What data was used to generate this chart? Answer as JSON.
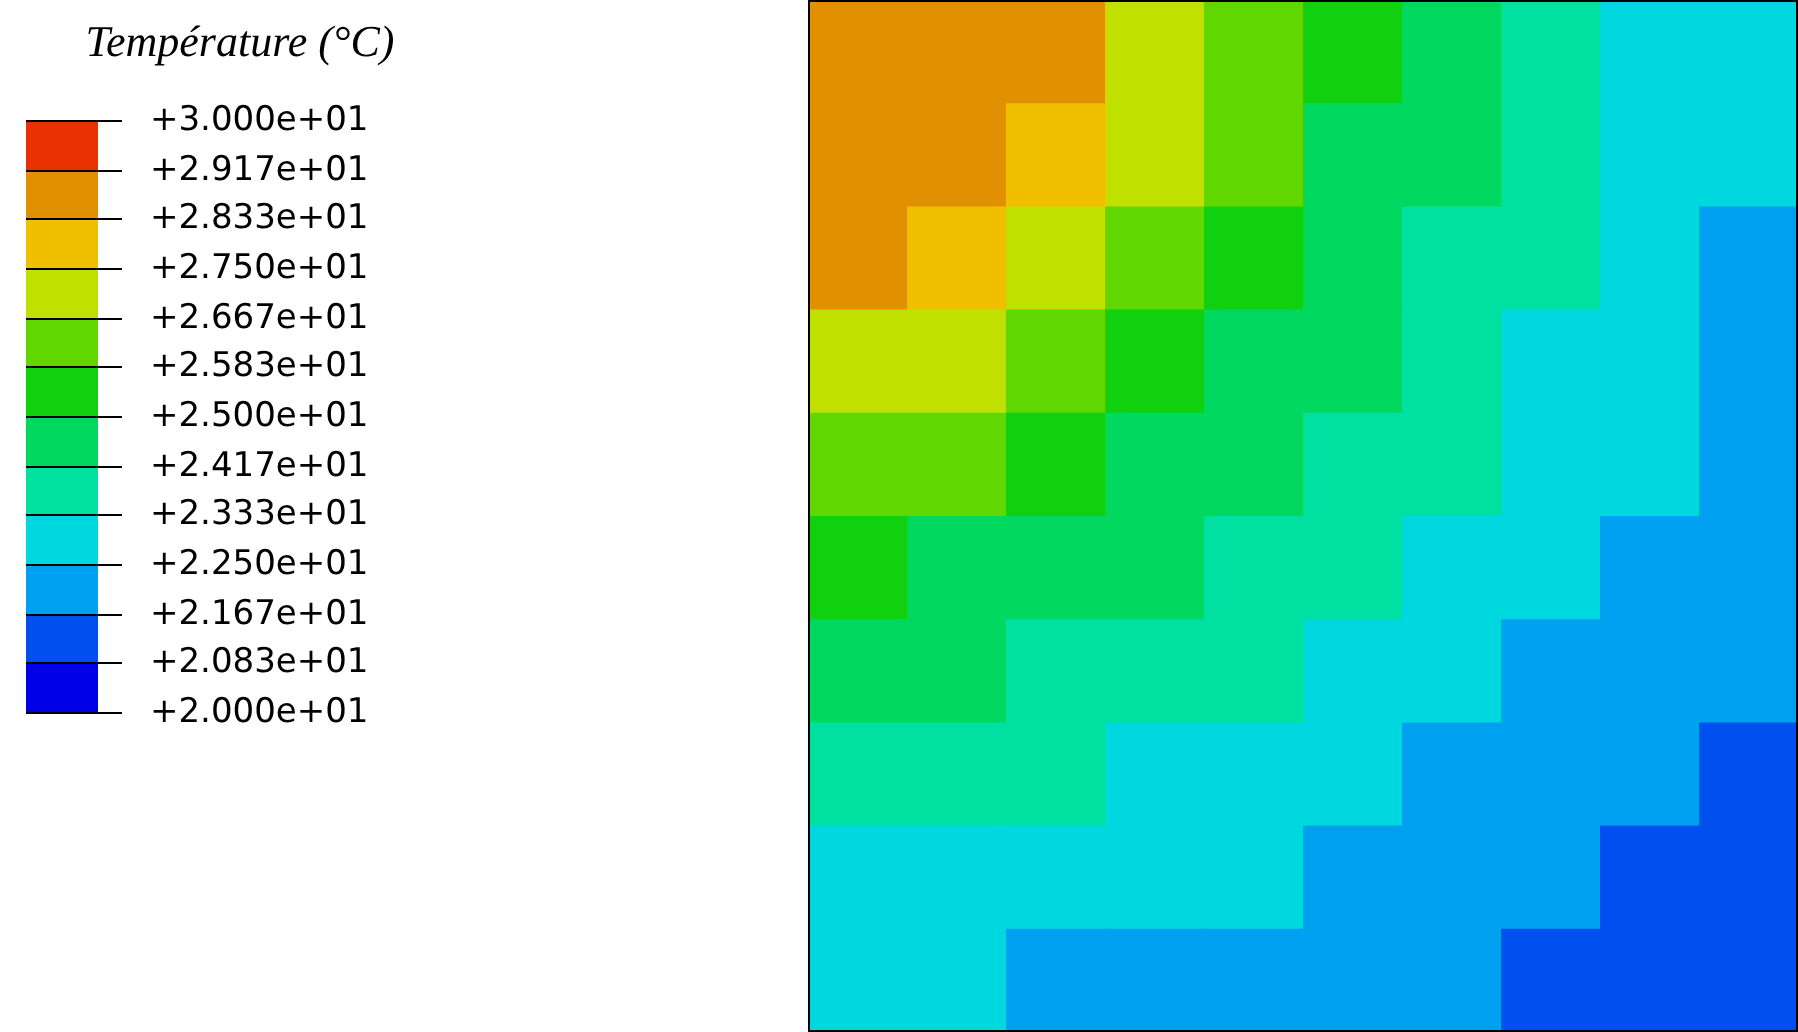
{
  "chart_data": {
    "type": "heatmap",
    "clabel": "Température (°C)",
    "categories": [
      null,
      null,
      null,
      null,
      null,
      null,
      null,
      null,
      null,
      null
    ],
    "y_categories": [
      null,
      null,
      null,
      null,
      null,
      null,
      null,
      null,
      null,
      null
    ],
    "cells": [
      [
        29.0,
        28.9,
        28.7,
        27.2,
        26.1,
        25.2,
        24.4,
        23.7,
        23.1,
        22.6
      ],
      [
        28.9,
        28.8,
        28.1,
        26.8,
        25.9,
        25.0,
        24.3,
        23.6,
        23.1,
        22.6
      ],
      [
        28.7,
        28.1,
        27.2,
        26.3,
        25.5,
        24.8,
        24.0,
        23.5,
        23.0,
        22.5
      ],
      [
        27.2,
        26.8,
        26.3,
        25.6,
        25.0,
        24.4,
        23.8,
        23.3,
        22.8,
        22.4
      ],
      [
        26.1,
        25.9,
        25.5,
        25.0,
        24.5,
        23.9,
        23.5,
        23.0,
        22.6,
        22.2
      ],
      [
        25.2,
        25.0,
        24.8,
        24.4,
        23.9,
        23.5,
        23.1,
        22.8,
        22.4,
        22.0
      ],
      [
        24.4,
        24.3,
        24.0,
        23.8,
        23.5,
        23.1,
        22.8,
        22.4,
        22.1,
        21.8
      ],
      [
        23.7,
        23.6,
        23.5,
        23.3,
        23.0,
        22.8,
        22.4,
        22.2,
        21.9,
        21.6
      ],
      [
        23.1,
        23.1,
        23.0,
        22.8,
        22.6,
        22.4,
        22.1,
        21.9,
        21.6,
        21.3
      ],
      [
        22.6,
        22.6,
        22.5,
        22.4,
        22.2,
        22.0,
        21.8,
        21.6,
        21.3,
        21.1
      ]
    ],
    "clim": [
      20,
      30
    ],
    "cticks": [
      {
        "value": 30,
        "label": "+3.000e+01"
      },
      {
        "value": 29.17,
        "label": "+2.917e+01"
      },
      {
        "value": 28.33,
        "label": "+2.833e+01"
      },
      {
        "value": 27.5,
        "label": "+2.750e+01"
      },
      {
        "value": 26.67,
        "label": "+2.667e+01"
      },
      {
        "value": 25.83,
        "label": "+2.583e+01"
      },
      {
        "value": 25,
        "label": "+2.500e+01"
      },
      {
        "value": 24.17,
        "label": "+2.417e+01"
      },
      {
        "value": 23.33,
        "label": "+2.333e+01"
      },
      {
        "value": 22.5,
        "label": "+2.250e+01"
      },
      {
        "value": 21.67,
        "label": "+2.167e+01"
      },
      {
        "value": 20.83,
        "label": "+2.083e+01"
      },
      {
        "value": 20,
        "label": "+2.000e+01"
      }
    ],
    "colors": [
      "#0000e8",
      "#0050f0",
      "#00a0f0",
      "#00d8e0",
      "#00e0a0",
      "#00d860",
      "#10d010",
      "#60d800",
      "#c0e000",
      "#f0c000",
      "#e09000",
      "#e83000"
    ]
  }
}
